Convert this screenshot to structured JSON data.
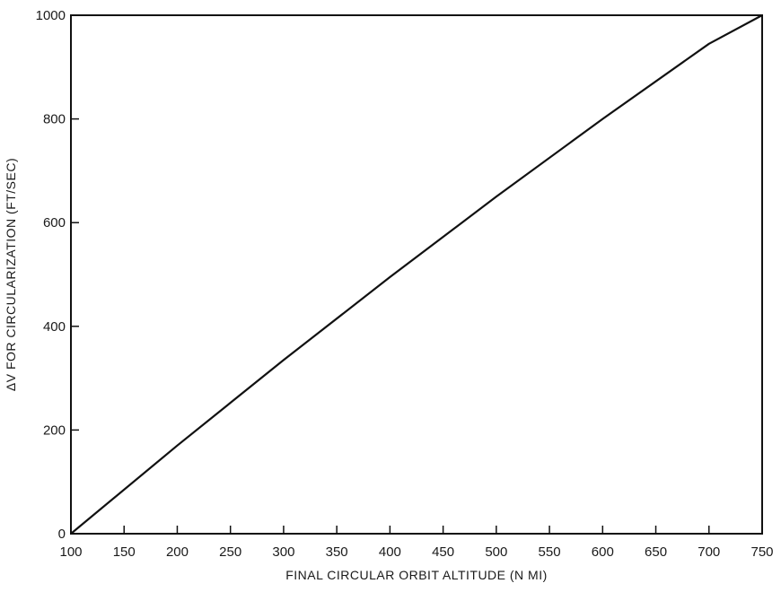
{
  "chart_data": {
    "type": "line",
    "xlabel": "FINAL CIRCULAR ORBIT ALTITUDE (N MI)",
    "ylabel": "ΔV FOR CIRCULARIZATION (FT/SEC)",
    "xlim": [
      100,
      750
    ],
    "ylim": [
      0,
      1000
    ],
    "xticks": [
      "100",
      "150",
      "200",
      "250",
      "300",
      "350",
      "400",
      "450",
      "500",
      "550",
      "600",
      "650",
      "700",
      "750"
    ],
    "yticks": [
      "0",
      "200",
      "400",
      "600",
      "800",
      "1000"
    ],
    "grid": false,
    "series": [
      {
        "x": [
          100,
          200,
          300,
          400,
          500,
          600,
          700,
          750
        ],
        "y": [
          0,
          170,
          335,
          495,
          650,
          800,
          945,
          1000
        ]
      }
    ]
  }
}
